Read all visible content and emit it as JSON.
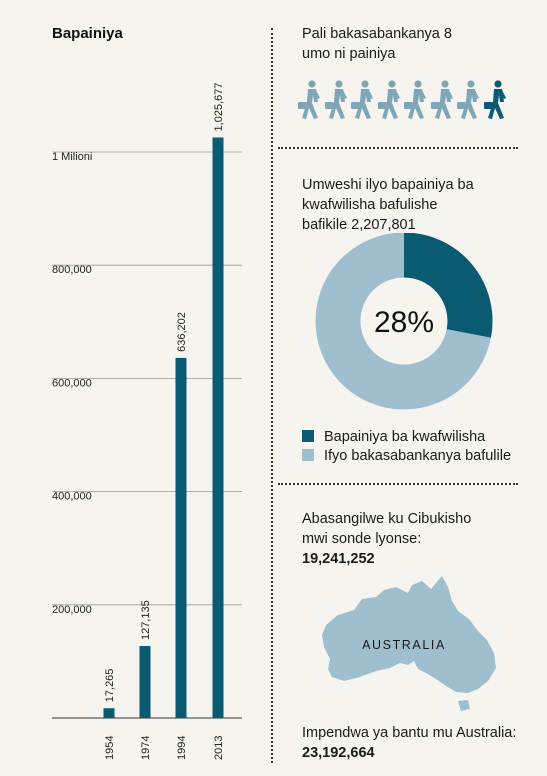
{
  "chart_data": {
    "type": "bar",
    "title": "Bapainiya",
    "categories": [
      "1954",
      "1974",
      "1994",
      "2013"
    ],
    "values": [
      17265,
      127135,
      636202,
      1025677
    ],
    "value_labels": [
      "17,265",
      "127,135",
      "636,202",
      "1,025,677"
    ],
    "y_ticks": [
      {
        "value": 200000,
        "label": "200,000"
      },
      {
        "value": 400000,
        "label": "400,000"
      },
      {
        "value": 600000,
        "label": "600,000"
      },
      {
        "value": 800000,
        "label": "800,000"
      },
      {
        "value": 1000000,
        "label": "1 Milioni"
      }
    ],
    "ylim": [
      0,
      1050000
    ],
    "grid": true,
    "bar_color": "#0a5a72"
  },
  "panel1": {
    "text_line1": "Pali bakasabankanya 8",
    "text_line2": "umo ni painiya",
    "figures_total": 8,
    "highlighted_index": 7,
    "icon": "walking-person-with-briefcase-icon"
  },
  "panel2": {
    "text_line1": "Umweshi ilyo bapainiya ba",
    "text_line2": "kwafwilisha bafulishe",
    "text_line3": "bafikile 2,207,801",
    "donut": {
      "center_label": "28%",
      "share": 0.28,
      "segments": [
        {
          "label": "Bapainiya ba kwafwilisha",
          "color": "#0a5a72"
        },
        {
          "label": "Ifyo bakasabankanya bafulile",
          "color": "#9fbfce"
        }
      ]
    }
  },
  "panel3": {
    "text_line1": "Abasangilwe ku Cibukisho",
    "text_line2": "mwi sonde lyonse:",
    "value": "19,241,252",
    "map_label": "AUSTRALIA",
    "map_color": "#9fbfce",
    "population_label": "Impendwa ya bantu mu Australia:",
    "population_value": "23,192,664"
  },
  "colors": {
    "dark_teal": "#0a5a72",
    "light_blue": "#9fbfce",
    "walker_light": "#7fa6b6",
    "background": "#f6f4ef"
  }
}
